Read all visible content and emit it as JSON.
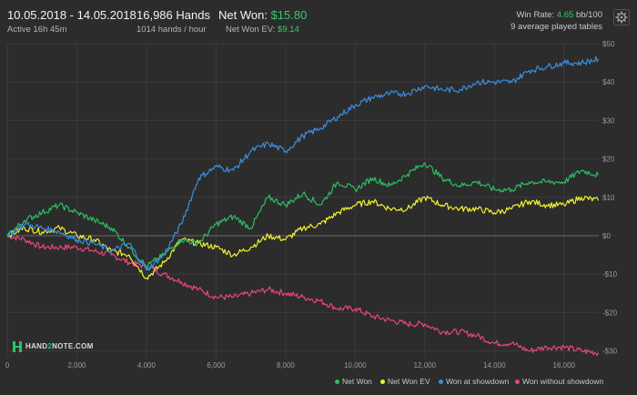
{
  "header": {
    "date_range": "10.05.2018 - 14.05.2018",
    "active": "Active 16h 45m",
    "hands": "16,986 Hands",
    "hands_per_hour": "1014 hands / hour",
    "net_won_label": "Net Won:",
    "net_won_value": "$15.80",
    "net_won_ev_label": "Net Won  EV:",
    "net_won_ev_value": "$9.14",
    "win_rate_label": "Win Rate:",
    "win_rate_value": "4.65",
    "win_rate_unit": "bb/100",
    "tables": "9 average played tables"
  },
  "logo": {
    "text_pre": "HAND",
    "text_mid": "2",
    "text_post": "NOTE.COM"
  },
  "colors": {
    "net_won": "#2bbf62",
    "net_won_ev": "#f0f032",
    "won_showdown": "#3b8fe0",
    "won_no_showdown": "#e8467c",
    "grid": "#3b3b3b",
    "zero": "#6a6a6a"
  },
  "chart_data": {
    "type": "line",
    "xlim": [
      0,
      17000
    ],
    "ylim": [
      -32,
      50
    ],
    "x_ticks": [
      0,
      2000,
      4000,
      6000,
      8000,
      10000,
      12000,
      14000,
      16000
    ],
    "x_tick_labels": [
      "0",
      "2,000",
      "4,000",
      "6,000",
      "8,000",
      "10,000",
      "12,000",
      "14,000",
      "16,000"
    ],
    "y_ticks": [
      50,
      40,
      30,
      20,
      10,
      0,
      -10,
      -20,
      -30
    ],
    "y_tick_labels": [
      "$50",
      "$40",
      "$30",
      "$20",
      "$10",
      "$0",
      "-$10",
      "-$20",
      "-$30"
    ],
    "grid": true,
    "legend": "bottom-right",
    "x": [
      0,
      500,
      1000,
      1500,
      2000,
      2500,
      3000,
      3500,
      4000,
      4500,
      5000,
      5500,
      6000,
      6500,
      7000,
      7500,
      8000,
      8500,
      9000,
      9500,
      10000,
      10500,
      11000,
      11500,
      12000,
      12500,
      13000,
      13500,
      14000,
      14500,
      15000,
      15500,
      16000,
      16500,
      16986
    ],
    "series": [
      {
        "name": "Net Won",
        "color_key": "net_won",
        "values": [
          0,
          4,
          6,
          8,
          6,
          4,
          2,
          -3,
          -8,
          -5,
          -1,
          -2,
          3,
          5,
          2,
          10,
          8,
          11,
          8,
          14,
          12,
          15,
          13,
          16,
          19,
          15,
          13,
          14,
          12,
          12,
          14,
          14,
          14,
          17,
          15.8
        ]
      },
      {
        "name": "Net Won  EV",
        "color_key": "net_won_ev",
        "values": [
          0,
          2,
          1,
          2,
          0,
          -1,
          -4,
          -5,
          -11,
          -7,
          -1,
          -2,
          -3,
          -5,
          -3,
          0,
          -1,
          2,
          3,
          6,
          8,
          9,
          7,
          7,
          10,
          8,
          7,
          7,
          6,
          7,
          9,
          8,
          8,
          10,
          9.14
        ]
      },
      {
        "name": "Won at showdown",
        "color_key": "won_showdown",
        "values": [
          0,
          3,
          2,
          1,
          -1,
          -2,
          -4,
          -2,
          -9,
          -5,
          3,
          15,
          18,
          17,
          22,
          24,
          22,
          26,
          28,
          31,
          34,
          36,
          37,
          37,
          39,
          38,
          38,
          40,
          40,
          40,
          43,
          44,
          45,
          45,
          46
        ]
      },
      {
        "name": "Won without showdown",
        "color_key": "won_no_showdown",
        "values": [
          0,
          -1,
          -3,
          -3,
          -3,
          -4,
          -5,
          -7,
          -8,
          -10,
          -12,
          -14,
          -16,
          -16,
          -15,
          -14,
          -15,
          -16,
          -17,
          -19,
          -19,
          -21,
          -22,
          -23,
          -23,
          -25,
          -25,
          -26,
          -28,
          -28,
          -30,
          -29,
          -29,
          -30,
          -30.5
        ]
      }
    ]
  }
}
